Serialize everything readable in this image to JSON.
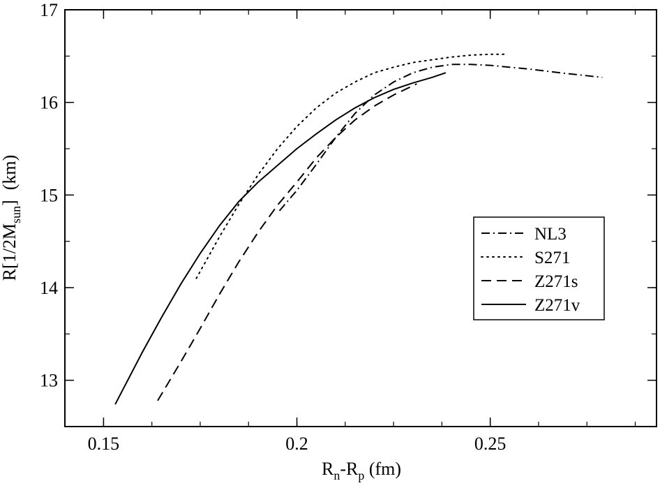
{
  "chart_data": {
    "type": "line",
    "title": "",
    "xlabel": {
      "main": "R",
      "sub1": "n",
      "mid": "-R",
      "sub2": "p",
      "unit": " (fm)"
    },
    "ylabel": {
      "prefix": "R[1/2M",
      "sub": "sun",
      "suffix": "]",
      "unit": "(km)"
    },
    "xlim": [
      0.14,
      0.293
    ],
    "ylim": [
      12.5,
      17.0
    ],
    "xticks": [
      {
        "value": 0.15,
        "label": "0.15"
      },
      {
        "value": 0.2,
        "label": "0.2"
      },
      {
        "value": 0.25,
        "label": "0.25"
      }
    ],
    "yticks": [
      {
        "value": 13,
        "label": "13"
      },
      {
        "value": 14,
        "label": "14"
      },
      {
        "value": 15,
        "label": "15"
      },
      {
        "value": 16,
        "label": "16"
      },
      {
        "value": 17,
        "label": "17"
      }
    ],
    "legend_position": "right",
    "series": [
      {
        "name": "NL3",
        "style": "dashdot",
        "x": [
          0.1955,
          0.2,
          0.205,
          0.21,
          0.215,
          0.22,
          0.225,
          0.23,
          0.235,
          0.24,
          0.245,
          0.25,
          0.26,
          0.27,
          0.279
        ],
        "y": [
          14.83,
          15.05,
          15.33,
          15.62,
          15.88,
          16.08,
          16.22,
          16.32,
          16.38,
          16.41,
          16.41,
          16.4,
          16.36,
          16.31,
          16.27
        ]
      },
      {
        "name": "S271",
        "style": "dotted",
        "x": [
          0.174,
          0.18,
          0.185,
          0.19,
          0.195,
          0.2,
          0.205,
          0.21,
          0.215,
          0.22,
          0.225,
          0.23,
          0.235,
          0.24,
          0.245,
          0.25,
          0.254
        ],
        "y": [
          14.1,
          14.55,
          14.9,
          15.22,
          15.5,
          15.74,
          15.94,
          16.1,
          16.22,
          16.32,
          16.38,
          16.43,
          16.46,
          16.49,
          16.51,
          16.52,
          16.52
        ]
      },
      {
        "name": "Z271s",
        "style": "dashed",
        "x": [
          0.164,
          0.17,
          0.175,
          0.18,
          0.185,
          0.19,
          0.195,
          0.2,
          0.205,
          0.21,
          0.215,
          0.22,
          0.225,
          0.231
        ],
        "y": [
          12.78,
          13.2,
          13.56,
          13.93,
          14.28,
          14.6,
          14.89,
          15.14,
          15.4,
          15.62,
          15.81,
          15.96,
          16.08,
          16.2
        ]
      },
      {
        "name": "Z271v",
        "style": "solid",
        "x": [
          0.153,
          0.16,
          0.165,
          0.17,
          0.175,
          0.18,
          0.185,
          0.19,
          0.195,
          0.2,
          0.205,
          0.21,
          0.215,
          0.22,
          0.225,
          0.23,
          0.235,
          0.2385
        ],
        "y": [
          12.74,
          13.3,
          13.68,
          14.04,
          14.37,
          14.67,
          14.93,
          15.14,
          15.32,
          15.5,
          15.66,
          15.81,
          15.94,
          16.05,
          16.14,
          16.21,
          16.27,
          16.32
        ]
      }
    ]
  }
}
